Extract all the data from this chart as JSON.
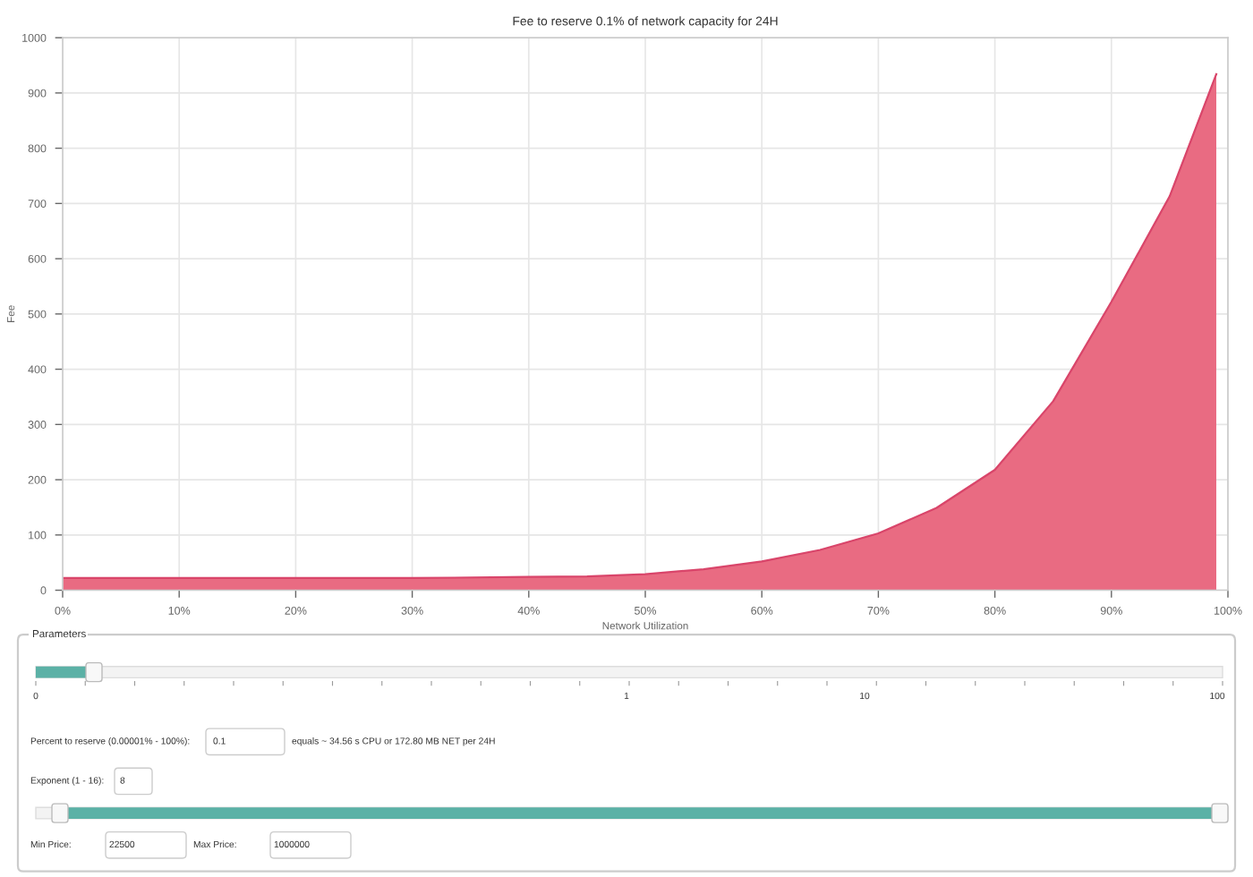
{
  "chart_data": [
    {
      "type": "area",
      "title": "Fee to reserve 0.1% of network capacity for 24H",
      "xlabel": "Network Utilization",
      "ylabel": "Fee",
      "series": [
        {
          "color": "#e96b82",
          "x": [
            0,
            10,
            20,
            30,
            40,
            45,
            50,
            55,
            60,
            65,
            70,
            75,
            80,
            85,
            90,
            95,
            99
          ],
          "values": [
            22,
            22,
            22,
            22,
            24,
            25,
            29,
            38,
            52,
            73,
            103,
            149,
            218,
            342,
            522,
            713,
            934
          ]
        }
      ],
      "xlim": [
        0,
        100
      ],
      "ylim": [
        0,
        1000
      ],
      "xticks": [
        {
          "value": 0,
          "label": "0%"
        },
        {
          "value": 10,
          "label": "10%"
        },
        {
          "value": 20,
          "label": "20%"
        },
        {
          "value": 30,
          "label": "30%"
        },
        {
          "value": 40,
          "label": "40%"
        },
        {
          "value": 50,
          "label": "50%"
        },
        {
          "value": 60,
          "label": "60%"
        },
        {
          "value": 70,
          "label": "70%"
        },
        {
          "value": 80,
          "label": "80%"
        },
        {
          "value": 90,
          "label": "90%"
        },
        {
          "value": 100,
          "label": "100%"
        }
      ],
      "yticks": [
        0,
        100,
        200,
        300,
        400,
        500,
        600,
        700,
        800,
        900,
        1000
      ],
      "grid": true,
      "marker": "none",
      "line_style": "solid"
    },
    {
      "type": "other",
      "title": "Parameters",
      "annotations": [
        "0",
        "1",
        "10",
        "100",
        "Percent to reserve (0.00001% - 100%):",
        "0.1",
        "equals ~ 34.56 s CPU or 172.80 MB NET per 24H",
        "Exponent (1 - 16):",
        "8",
        "Min Price:",
        "22500",
        "Max Price:",
        "1000000"
      ]
    }
  ]
}
